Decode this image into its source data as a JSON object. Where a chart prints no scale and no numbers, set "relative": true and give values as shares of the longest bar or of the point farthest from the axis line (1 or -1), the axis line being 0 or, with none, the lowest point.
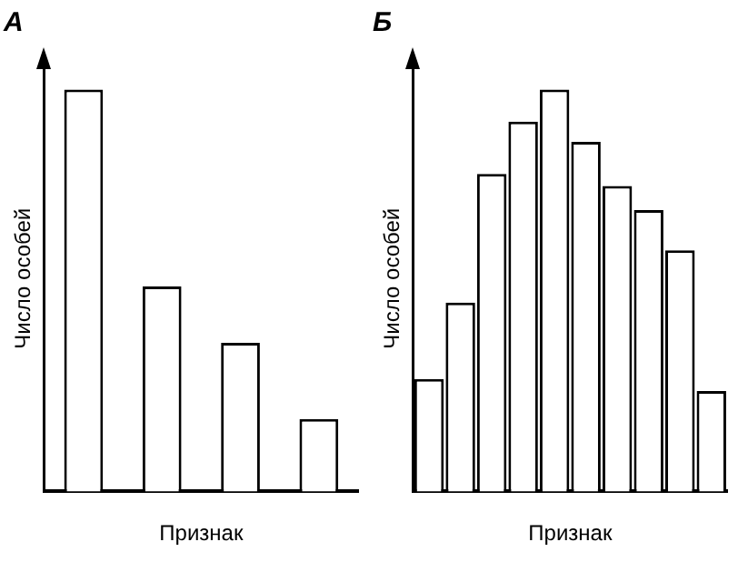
{
  "chart_data": [
    {
      "type": "bar",
      "title": "А",
      "xlabel": "Признак",
      "ylabel": "Число особей",
      "relative": true,
      "categories": [
        null,
        null,
        null,
        null
      ],
      "values": [
        1,
        0.51,
        0.37,
        0.18
      ],
      "color": "#ffffff",
      "grid": false,
      "legend": false
    },
    {
      "type": "bar",
      "title": "Б",
      "xlabel": "Признак",
      "ylabel": "Число особей",
      "relative": true,
      "categories": [
        null,
        null,
        null,
        null,
        null,
        null,
        null,
        null,
        null,
        null
      ],
      "values": [
        0.28,
        0.47,
        0.79,
        0.92,
        1,
        0.87,
        0.76,
        0.7,
        0.6,
        0.25
      ],
      "color": "#ffffff",
      "grid": false,
      "legend": false
    }
  ]
}
